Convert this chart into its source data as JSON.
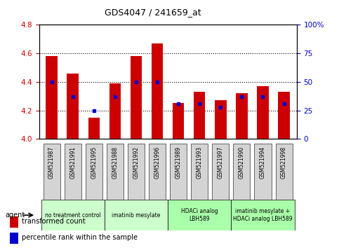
{
  "title": "GDS4047 / 241659_at",
  "samples": [
    "GSM521987",
    "GSM521991",
    "GSM521995",
    "GSM521988",
    "GSM521992",
    "GSM521996",
    "GSM521989",
    "GSM521993",
    "GSM521997",
    "GSM521990",
    "GSM521994",
    "GSM521998"
  ],
  "red_values": [
    4.58,
    4.46,
    4.15,
    4.39,
    4.58,
    4.67,
    4.25,
    4.33,
    4.27,
    4.32,
    4.37,
    4.33
  ],
  "blue_values": [
    50,
    37,
    25,
    37,
    50,
    50,
    31,
    31,
    28,
    37,
    37,
    31
  ],
  "ylim_left": [
    4.0,
    4.8
  ],
  "ylim_right": [
    0,
    100
  ],
  "groups": [
    {
      "label": "no treatment control",
      "start": 0,
      "end": 3,
      "color": "#ccffcc"
    },
    {
      "label": "imatinib mesylate",
      "start": 3,
      "end": 6,
      "color": "#ccffcc"
    },
    {
      "label": "HDACi analog\nLBH589",
      "start": 6,
      "end": 9,
      "color": "#aaffaa"
    },
    {
      "label": "imatinib mesylate +\nHDACi analog LBH589",
      "start": 9,
      "end": 12,
      "color": "#aaffaa"
    }
  ],
  "agent_label": "agent",
  "legend_red": "transformed count",
  "legend_blue": "percentile rank within the sample",
  "bar_color": "#cc0000",
  "dot_color": "#0000cc",
  "background_color": "#ffffff",
  "tick_color_left": "#cc0000",
  "tick_color_right": "#0000cc",
  "yticks_left": [
    4.0,
    4.2,
    4.4,
    4.6,
    4.8
  ],
  "yticks_right": [
    0,
    25,
    50,
    75,
    100
  ],
  "ytick_labels_right": [
    "0",
    "25",
    "50",
    "75",
    "100%"
  ],
  "grid_lines": [
    4.2,
    4.4,
    4.6
  ]
}
